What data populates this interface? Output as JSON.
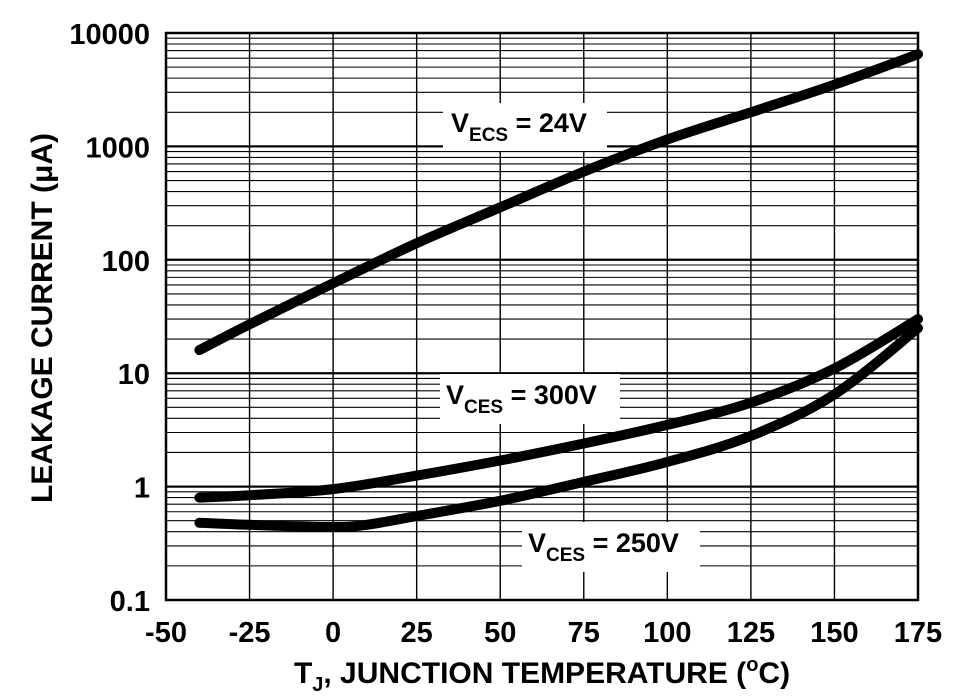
{
  "chart_data": {
    "type": "line",
    "xlabel": {
      "main": "T",
      "sub": "J",
      "rest": ", JUNCTION TEMPERATURE (",
      "sup": "o",
      "end": "C)"
    },
    "ylabel": "LEAKAGE CURRENT (μA)",
    "xlim": [
      -50,
      175
    ],
    "ylim": [
      0.1,
      10000
    ],
    "yscale": "log",
    "grid": true,
    "x_ticks": [
      -50,
      -25,
      0,
      25,
      50,
      75,
      100,
      125,
      150,
      175
    ],
    "x_tick_labels": [
      "-50",
      "-25",
      "0",
      "25",
      "50",
      "75",
      "100",
      "125",
      "150",
      "175"
    ],
    "y_ticks": [
      0.1,
      1,
      10,
      100,
      1000,
      10000
    ],
    "y_tick_labels": [
      "0.1",
      "1",
      "10",
      "100",
      "1000",
      "10000"
    ],
    "series": [
      {
        "name": "VECS = 24V",
        "label_main": "V",
        "label_sub": "ECS",
        "label_rest": " = 24V",
        "x": [
          -40,
          -25,
          0,
          25,
          50,
          75,
          100,
          125,
          150,
          175
        ],
        "y": [
          16,
          27,
          62,
          140,
          290,
          600,
          1150,
          2000,
          3500,
          6500
        ]
      },
      {
        "name": "VCES = 300V",
        "label_main": "V",
        "label_sub": "CES",
        "label_rest": " = 300V",
        "x": [
          -40,
          -25,
          0,
          25,
          50,
          75,
          100,
          125,
          150,
          175
        ],
        "y": [
          0.8,
          0.84,
          0.95,
          1.25,
          1.7,
          2.4,
          3.5,
          5.5,
          11,
          30
        ]
      },
      {
        "name": "VCES = 250V",
        "label_main": "V",
        "label_sub": "CES",
        "label_rest": " = 250V",
        "x": [
          -40,
          -25,
          0,
          10,
          25,
          50,
          75,
          100,
          125,
          150,
          175
        ],
        "y": [
          0.48,
          0.46,
          0.44,
          0.46,
          0.55,
          0.75,
          1.1,
          1.65,
          2.8,
          6.5,
          25
        ]
      }
    ]
  }
}
